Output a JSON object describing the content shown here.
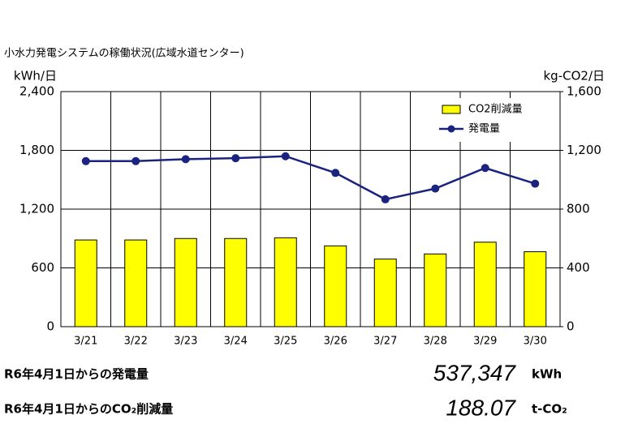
{
  "chart_data": {
    "type": "combo",
    "title": "小水力発電システムの稼働状況(広域水道センター)",
    "y_label": "kWh/日",
    "y2_label": "kg-CO2/日",
    "categories": [
      "3/21",
      "3/22",
      "3/23",
      "3/24",
      "3/25",
      "3/26",
      "3/27",
      "3/28",
      "3/29",
      "3/30"
    ],
    "series": [
      {
        "name": "CO2削減量",
        "type": "bar",
        "axis": "y2",
        "color": "#ffff00",
        "values": [
          590,
          590,
          600,
          600,
          605,
          550,
          460,
          495,
          575,
          510
        ]
      },
      {
        "name": "発電量",
        "type": "line",
        "axis": "y",
        "color": "#1a237e",
        "values": [
          1690,
          1690,
          1710,
          1720,
          1740,
          1570,
          1300,
          1410,
          1620,
          1460
        ]
      }
    ],
    "ylim": [
      0,
      2400
    ],
    "yticks": [
      0,
      600,
      {
        "value": 1200,
        "label": "1,200"
      },
      {
        "value": 1800,
        "label": "1,800"
      },
      {
        "value": 2400,
        "label": "2,400"
      }
    ],
    "y2lim": [
      0,
      1600
    ],
    "y2ticks": [
      0,
      400,
      800,
      {
        "value": 1200,
        "label": "1,200"
      },
      {
        "value": 1600,
        "label": "1,600"
      }
    ],
    "grid": true,
    "legend": "upper-right"
  },
  "summary": [
    {
      "label": "R6年4月1日からの発電量",
      "value": "537,347",
      "unit": "kWh"
    },
    {
      "label": "R6年4月1日からのCO₂削減量",
      "value": "188.07",
      "unit": "t-CO₂"
    }
  ]
}
